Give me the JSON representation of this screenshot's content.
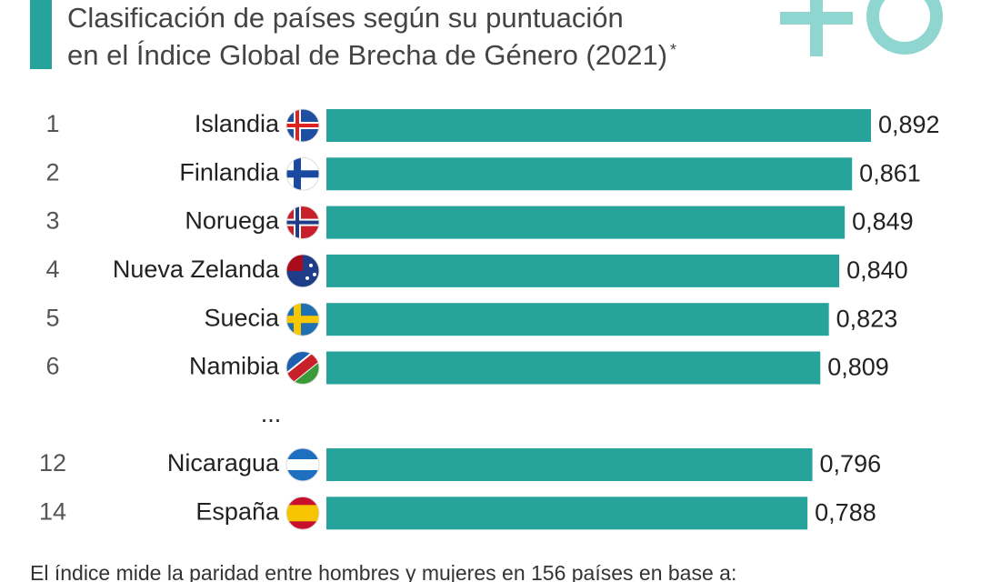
{
  "chart_data": {
    "type": "bar",
    "orientation": "horizontal",
    "title": [
      "Clasificación de países según su puntuación",
      "en el Índice Global de Brecha de Género (2021)"
    ],
    "title_mark": "*",
    "ranks": [
      "1",
      "2",
      "3",
      "4",
      "5",
      "6",
      "12",
      "14"
    ],
    "ellipsis": "...",
    "categories": [
      "Islandia",
      "Finlandia",
      "Noruega",
      "Nueva Zelanda",
      "Suecia",
      "Namibia",
      "Nicaragua",
      "España"
    ],
    "values": [
      0.892,
      0.861,
      0.849,
      0.84,
      0.823,
      0.809,
      0.796,
      0.788
    ],
    "value_labels": [
      "0,892",
      "0,861",
      "0,849",
      "0,840",
      "0,823",
      "0,809",
      "0,796",
      "0,788"
    ],
    "color": "#26a39a",
    "note": "El índice mide la paridad entre hombres y mujeres en 156 países en base a:"
  }
}
